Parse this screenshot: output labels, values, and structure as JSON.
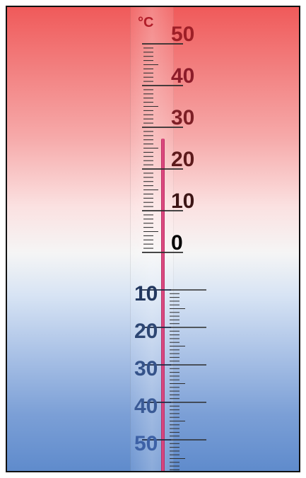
{
  "thermometer": {
    "unit_label": "°C",
    "upper_labels": [
      "50",
      "40",
      "30",
      "20",
      "10",
      "0"
    ],
    "lower_labels": [
      "10",
      "20",
      "30",
      "40",
      "50"
    ],
    "current_value": 27
  }
}
